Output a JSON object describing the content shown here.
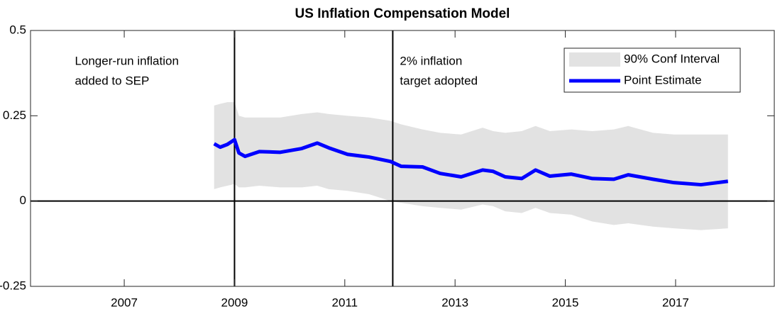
{
  "chart_data": {
    "type": "band-line",
    "title": "US Inflation Compensation Model",
    "x": [
      2008.63,
      2008.74,
      2008.87,
      2009.0,
      2009.08,
      2009.19,
      2009.45,
      2009.83,
      2010.22,
      2010.5,
      2010.71,
      2011.05,
      2011.44,
      2011.83,
      2012.02,
      2012.41,
      2012.73,
      2013.11,
      2013.5,
      2013.69,
      2013.91,
      2014.21,
      2014.46,
      2014.72,
      2015.11,
      2015.49,
      2015.88,
      2016.14,
      2016.59,
      2016.97,
      2017.46,
      2017.95
    ],
    "series": [
      {
        "name": "90% Conf Interval",
        "color": "#e2e2e2",
        "upper": [
          0.28,
          0.285,
          0.29,
          0.29,
          0.25,
          0.245,
          0.245,
          0.245,
          0.255,
          0.26,
          0.255,
          0.25,
          0.245,
          0.235,
          0.225,
          0.21,
          0.2,
          0.195,
          0.215,
          0.205,
          0.2,
          0.205,
          0.22,
          0.205,
          0.21,
          0.205,
          0.21,
          0.22,
          0.2,
          0.195,
          0.195,
          0.195
        ],
        "lower": [
          0.035,
          0.04,
          0.045,
          0.05,
          0.04,
          0.04,
          0.045,
          0.04,
          0.04,
          0.045,
          0.035,
          0.03,
          0.02,
          0.0,
          -0.005,
          -0.015,
          -0.02,
          -0.025,
          -0.01,
          -0.015,
          -0.03,
          -0.035,
          -0.02,
          -0.035,
          -0.04,
          -0.06,
          -0.07,
          -0.065,
          -0.075,
          -0.08,
          -0.085,
          -0.08
        ]
      },
      {
        "name": "Point Estimate",
        "color": "#0000ff",
        "values": [
          0.168,
          0.158,
          0.166,
          0.18,
          0.141,
          0.131,
          0.145,
          0.143,
          0.154,
          0.17,
          0.156,
          0.137,
          0.129,
          0.116,
          0.102,
          0.1,
          0.081,
          0.071,
          0.091,
          0.087,
          0.071,
          0.066,
          0.091,
          0.073,
          0.079,
          0.066,
          0.064,
          0.077,
          0.064,
          0.054,
          0.048,
          0.058
        ]
      }
    ],
    "vlines": [
      2009.0,
      2011.87
    ],
    "hline": 0,
    "annotations": [
      [
        "Longer-run inflation",
        "added to SEP"
      ],
      [
        "2% inflation",
        "target adopted"
      ]
    ],
    "xlim": [
      2005.3,
      2018.79
    ],
    "xticks": [
      2007,
      2009,
      2011,
      2013,
      2015,
      2017
    ],
    "ylim": [
      -0.25,
      0.5
    ],
    "yticks": [
      -0.25,
      0,
      0.25,
      0.5
    ],
    "legend": "northeast"
  }
}
